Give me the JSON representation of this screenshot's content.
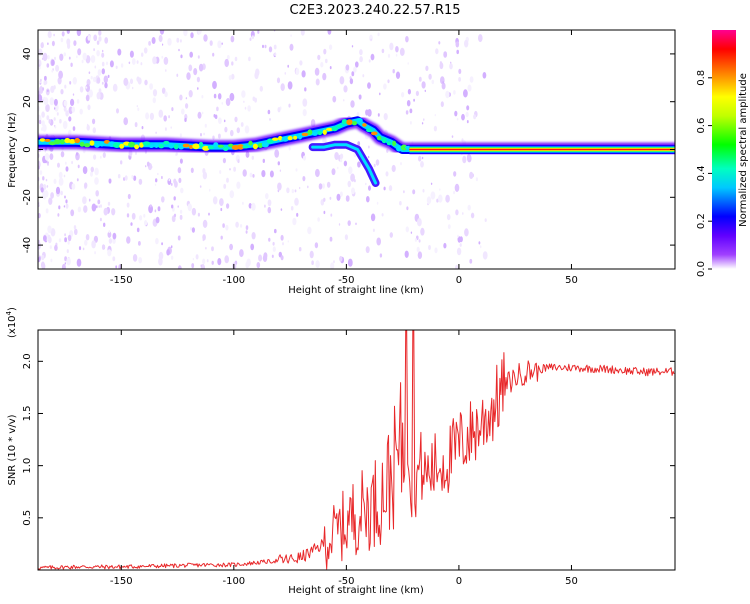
{
  "title": "C2E3.2023.240.22.57.R15",
  "chart_data": [
    {
      "type": "heatmap",
      "xlabel": "Height of straight line (km)",
      "ylabel": "Frequency (Hz)",
      "xlim": [
        -187,
        96
      ],
      "ylim": [
        -50,
        50
      ],
      "xticks": [
        -150,
        -100,
        -50,
        0,
        50
      ],
      "yticks": [
        -40,
        -20,
        0,
        20,
        40
      ],
      "xtick_labels": [
        "-150",
        "-100",
        "-50",
        "0",
        "50"
      ],
      "ytick_labels": [
        "-40",
        "-20",
        "0",
        "20",
        "40"
      ],
      "ridge": {
        "x": [
          -187,
          -170,
          -150,
          -130,
          -110,
          -100,
          -90,
          -80,
          -70,
          -65,
          -60,
          -55,
          -50,
          -45,
          -42,
          -38,
          -35,
          -30,
          -27,
          -25,
          -20,
          -15,
          -10,
          0,
          10,
          20,
          50,
          96
        ],
        "frequency": [
          3,
          3,
          2,
          2,
          1,
          1,
          2,
          4,
          6,
          7,
          8,
          9,
          11,
          12,
          10,
          8,
          5,
          3,
          1,
          0,
          0,
          0,
          0,
          0,
          0,
          0,
          0,
          0
        ]
      },
      "secondary_branch": {
        "x": [
          -65,
          -60,
          -55,
          -50,
          -45,
          -40,
          -37
        ],
        "frequency": [
          1,
          1,
          2,
          2,
          0,
          -8,
          -14
        ]
      }
    },
    {
      "type": "colorbar",
      "label": "Normalized spectral amplitude",
      "range": [
        0,
        1
      ],
      "ticks": [
        0.0,
        0.2,
        0.4,
        0.6,
        0.8
      ],
      "tick_labels": [
        "0.0",
        "0.2",
        "0.4",
        "0.6",
        "0.8"
      ],
      "colors": [
        "#ffffff",
        "#8000ff",
        "#0000ff",
        "#00ffff",
        "#00ff00",
        "#ffff00",
        "#ff8000",
        "#ff0000",
        "#ff0080"
      ]
    },
    {
      "type": "line",
      "xlabel": "Height of straight line (km)",
      "ylabel": "SNR (10 * v/v)",
      "scale_note_base": "(x10",
      "scale_note_exp": "4",
      "scale_note_end": ")",
      "xlim": [
        -187,
        96
      ],
      "ylim": [
        0,
        2.3
      ],
      "xticks": [
        -150,
        -100,
        -50,
        0,
        50
      ],
      "yticks": [
        0.5,
        1.0,
        1.5,
        2.0
      ],
      "xtick_labels": [
        "-150",
        "-100",
        "-50",
        "0",
        "50"
      ],
      "ytick_labels": [
        "0.5",
        "1.0",
        "1.5",
        "2.0"
      ],
      "series": [
        {
          "color": "#e8282a",
          "x": [
            -187,
            -170,
            -150,
            -130,
            -110,
            -100,
            -95,
            -90,
            -85,
            -80,
            -75,
            -70,
            -65,
            -60,
            -55,
            -50,
            -45,
            -40,
            -35,
            -30,
            -25,
            -22,
            -20,
            -17,
            -15,
            -10,
            -5,
            0,
            5,
            10,
            15,
            20,
            25,
            30,
            35,
            40,
            50,
            60,
            70,
            80,
            96
          ],
          "values": [
            0.02,
            0.03,
            0.03,
            0.04,
            0.05,
            0.05,
            0.06,
            0.07,
            0.08,
            0.09,
            0.1,
            0.12,
            0.18,
            0.25,
            0.35,
            0.45,
            0.55,
            0.6,
            0.7,
            0.9,
            1.2,
            1.4,
            0.8,
            1.0,
            0.9,
            1.0,
            1.05,
            1.2,
            1.3,
            1.4,
            1.55,
            1.75,
            1.85,
            1.9,
            1.92,
            1.94,
            1.94,
            1.93,
            1.92,
            1.9,
            1.9
          ]
        }
      ]
    }
  ]
}
